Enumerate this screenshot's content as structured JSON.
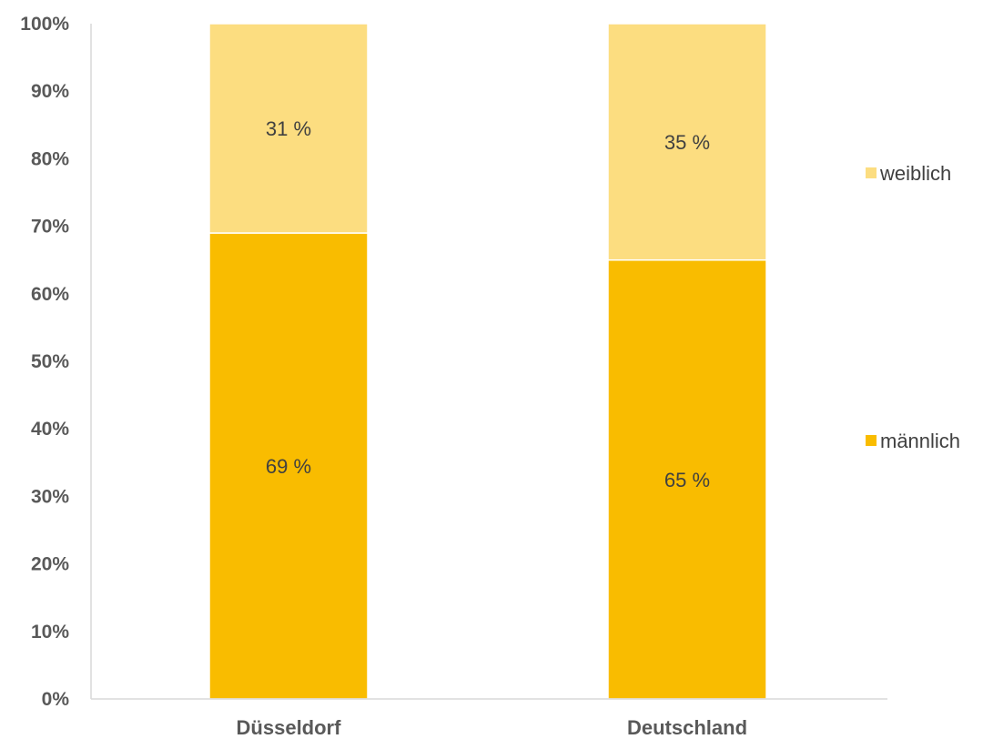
{
  "chart_data": {
    "type": "bar",
    "stacked": true,
    "categories": [
      "Düsseldorf",
      "Deutschland"
    ],
    "series": [
      {
        "name": "männlich",
        "values": [
          69,
          65
        ],
        "labels": [
          "69 %",
          "65 %"
        ],
        "color": "#F9BC00"
      },
      {
        "name": "weiblich",
        "values": [
          31,
          35
        ],
        "labels": [
          "31 %",
          "35 %"
        ],
        "color": "#FCDD80"
      }
    ],
    "y_ticks": [
      "0%",
      "10%",
      "20%",
      "30%",
      "40%",
      "50%",
      "60%",
      "70%",
      "80%",
      "90%",
      "100%"
    ],
    "ylim": [
      0,
      100
    ],
    "title": "",
    "xlabel": "",
    "ylabel": "",
    "grid": false,
    "legend_position": "right",
    "colors": {
      "axis": "#D9D9D9",
      "text": "#595959"
    }
  }
}
